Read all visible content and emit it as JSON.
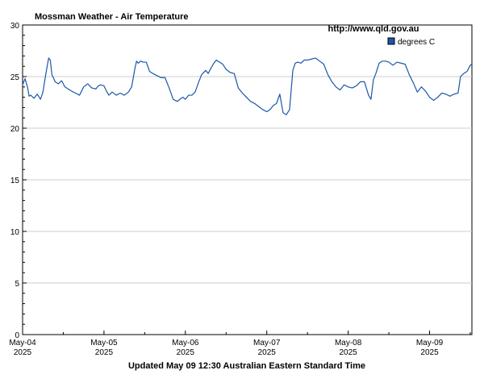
{
  "chart_data": {
    "type": "line",
    "title": "Mossman Weather - Air Temperature",
    "source_url": "http://www.qld.gov.au",
    "footer": "Updated May 09 12:30 Australian Eastern Standard Time",
    "xlabel": "",
    "ylabel": "",
    "ylim": [
      0,
      30
    ],
    "yticks": [
      0,
      5,
      10,
      15,
      20,
      25,
      30
    ],
    "grid": true,
    "legend_position": "top-right",
    "x_ticks": [
      {
        "date": "May-04",
        "year": "2025",
        "day": 0
      },
      {
        "date": "May-05",
        "year": "2025",
        "day": 1
      },
      {
        "date": "May-06",
        "year": "2025",
        "day": 2
      },
      {
        "date": "May-07",
        "year": "2025",
        "day": 3
      },
      {
        "date": "May-08",
        "year": "2025",
        "day": 4
      },
      {
        "date": "May-09",
        "year": "2025",
        "day": 5
      }
    ],
    "xlim_days": [
      0,
      5.52
    ],
    "series": [
      {
        "name": "degrees C",
        "color": "#1a57a8",
        "x": [
          0.0,
          0.03,
          0.06,
          0.08,
          0.1,
          0.14,
          0.18,
          0.22,
          0.25,
          0.28,
          0.32,
          0.34,
          0.36,
          0.4,
          0.44,
          0.48,
          0.52,
          0.56,
          0.6,
          0.65,
          0.7,
          0.75,
          0.8,
          0.85,
          0.9,
          0.93,
          0.96,
          1.0,
          1.03,
          1.06,
          1.1,
          1.15,
          1.2,
          1.25,
          1.3,
          1.34,
          1.38,
          1.4,
          1.42,
          1.45,
          1.48,
          1.52,
          1.56,
          1.6,
          1.65,
          1.7,
          1.75,
          1.8,
          1.85,
          1.9,
          1.95,
          1.97,
          2.0,
          2.04,
          2.08,
          2.12,
          2.16,
          2.2,
          2.25,
          2.28,
          2.32,
          2.35,
          2.38,
          2.42,
          2.46,
          2.5,
          2.55,
          2.6,
          2.65,
          2.7,
          2.75,
          2.8,
          2.85,
          2.9,
          2.95,
          3.0,
          3.04,
          3.08,
          3.12,
          3.16,
          3.2,
          3.24,
          3.28,
          3.32,
          3.35,
          3.38,
          3.42,
          3.46,
          3.5,
          3.55,
          3.6,
          3.65,
          3.7,
          3.75,
          3.8,
          3.85,
          3.9,
          3.95,
          4.0,
          4.05,
          4.1,
          4.15,
          4.2,
          4.25,
          4.28,
          4.31,
          4.34,
          4.38,
          4.42,
          4.46,
          4.5,
          4.55,
          4.6,
          4.65,
          4.7,
          4.75,
          4.8,
          4.85,
          4.9,
          4.95,
          5.0,
          5.05,
          5.1,
          5.15,
          5.2,
          5.25,
          5.3,
          5.35,
          5.38,
          5.42,
          5.46,
          5.5,
          5.52
        ],
        "values": [
          24.2,
          24.8,
          24.0,
          23.1,
          23.2,
          22.9,
          23.3,
          22.8,
          23.5,
          25.0,
          26.8,
          26.6,
          25.2,
          24.5,
          24.3,
          24.6,
          24.0,
          23.8,
          23.6,
          23.4,
          23.2,
          24.0,
          24.3,
          23.9,
          23.8,
          24.1,
          24.2,
          24.1,
          23.6,
          23.2,
          23.5,
          23.2,
          23.4,
          23.2,
          23.5,
          24.0,
          25.8,
          26.5,
          26.3,
          26.5,
          26.4,
          26.4,
          25.5,
          25.3,
          25.1,
          24.9,
          24.9,
          23.9,
          22.8,
          22.6,
          22.9,
          23.0,
          22.8,
          23.2,
          23.2,
          23.5,
          24.4,
          25.2,
          25.6,
          25.3,
          25.9,
          26.3,
          26.6,
          26.4,
          26.2,
          25.7,
          25.4,
          25.3,
          23.9,
          23.4,
          23.0,
          22.6,
          22.4,
          22.1,
          21.8,
          21.6,
          21.8,
          22.2,
          22.4,
          23.3,
          21.5,
          21.3,
          21.8,
          25.6,
          26.3,
          26.4,
          26.3,
          26.6,
          26.6,
          26.7,
          26.8,
          26.5,
          26.2,
          25.2,
          24.5,
          24.0,
          23.7,
          24.2,
          24.0,
          23.9,
          24.1,
          24.5,
          24.5,
          23.2,
          22.8,
          24.7,
          25.3,
          26.3,
          26.5,
          26.5,
          26.4,
          26.1,
          26.4,
          26.3,
          26.2,
          25.2,
          24.4,
          23.5,
          24.0,
          23.6,
          23.0,
          22.7,
          23.0,
          23.4,
          23.3,
          23.1,
          23.3,
          23.4,
          25.0,
          25.3,
          25.5,
          26.1,
          26.2
        ]
      }
    ]
  }
}
